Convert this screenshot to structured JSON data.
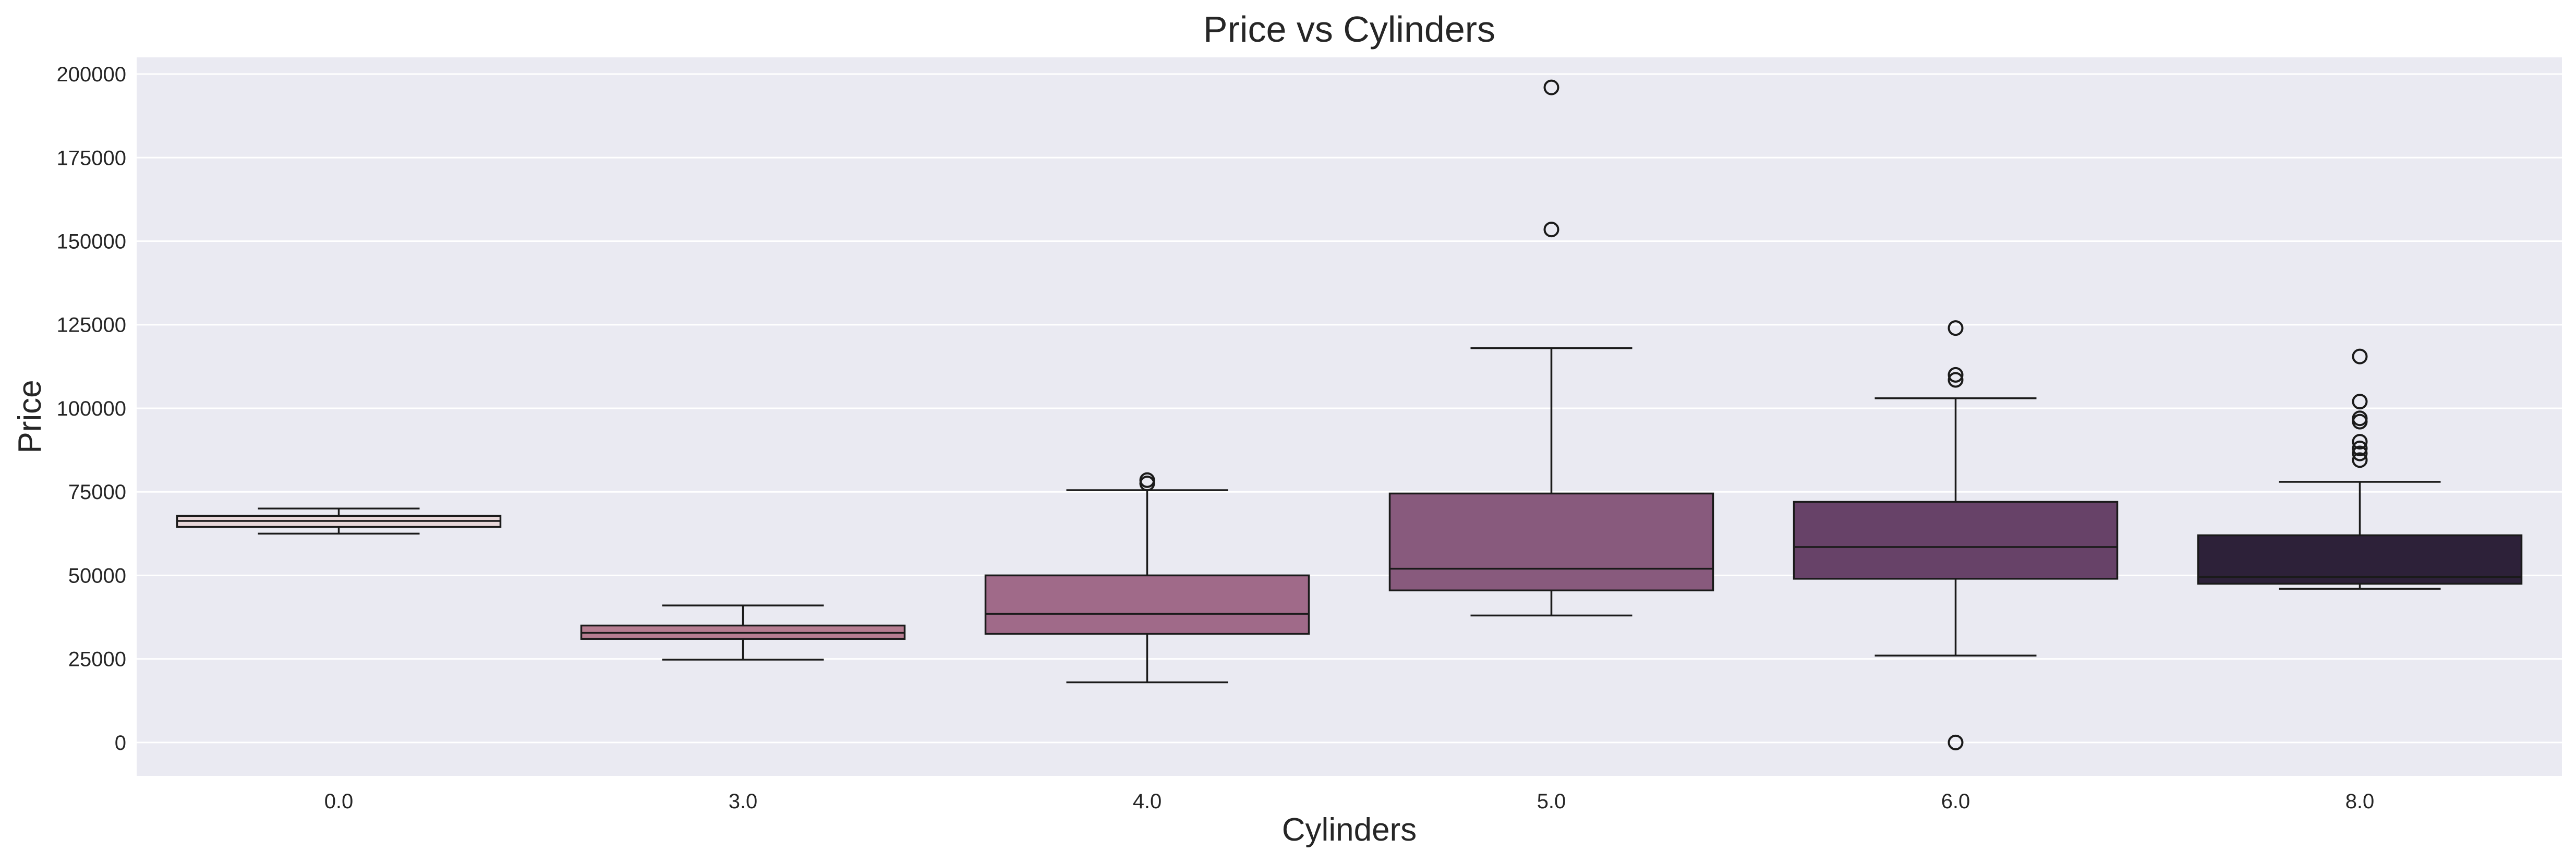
{
  "chart_data": {
    "type": "box",
    "title": "Price vs Cylinders",
    "xlabel": "Cylinders",
    "ylabel": "Price",
    "categories": [
      "0.0",
      "3.0",
      "4.0",
      "5.0",
      "6.0",
      "8.0"
    ],
    "ylim": [
      -10000,
      205000
    ],
    "yticks": [
      0,
      25000,
      50000,
      75000,
      100000,
      125000,
      150000,
      175000,
      200000
    ],
    "grid": true,
    "boxes": [
      {
        "category": "0.0",
        "whisker_low": 62500,
        "q1": 64500,
        "median": 66300,
        "q3": 67800,
        "whisker_high": 70000,
        "outliers": [],
        "color": "#e8d7d9"
      },
      {
        "category": "3.0",
        "whisker_low": 24800,
        "q1": 31000,
        "median": 32800,
        "q3": 35000,
        "whisker_high": 41000,
        "outliers": [],
        "color": "#b67d91"
      },
      {
        "category": "4.0",
        "whisker_low": 18000,
        "q1": 32500,
        "median": 38500,
        "q3": 50000,
        "whisker_high": 75500,
        "outliers": [
          77500,
          78500
        ],
        "color": "#a06a89"
      },
      {
        "category": "5.0",
        "whisker_low": 38000,
        "q1": 45500,
        "median": 52000,
        "q3": 74500,
        "whisker_high": 118000,
        "outliers": [
          153500,
          196000
        ],
        "color": "#885a7d"
      },
      {
        "category": "6.0",
        "whisker_low": 26000,
        "q1": 49000,
        "median": 58500,
        "q3": 72000,
        "whisker_high": 103000,
        "outliers": [
          0,
          108500,
          110000,
          124000
        ],
        "color": "#674268"
      },
      {
        "category": "8.0",
        "whisker_low": 46000,
        "q1": 47500,
        "median": 49500,
        "q3": 62000,
        "whisker_high": 78000,
        "outliers": [
          84500,
          86500,
          88000,
          90000,
          96000,
          97000,
          102000,
          115500
        ],
        "color": "#2d2139"
      }
    ]
  }
}
